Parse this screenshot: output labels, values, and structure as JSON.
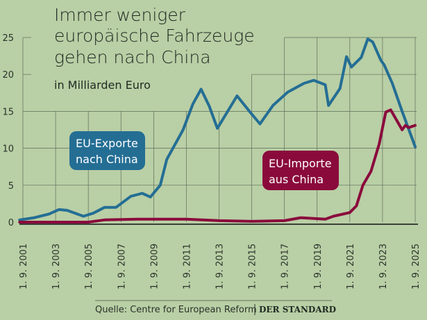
{
  "chart_data": {
    "type": "line",
    "title": [
      "Immer weniger",
      "europäische Fahrzeuge",
      "gehen nach China"
    ],
    "subtitle": "in Milliarden Euro",
    "xlabel": "",
    "ylabel": "",
    "ylim": [
      0,
      25
    ],
    "y_ticks": [
      0,
      5,
      10,
      15,
      20,
      25
    ],
    "x_range": [
      2001,
      2025
    ],
    "x_tick_labels": [
      "1. 9. 2001",
      "1. 9. 2003",
      "1. 9. 2005",
      "1. 9. 2007",
      "1. 9. 2009",
      "1. 9. 2011",
      "1. 9. 2013",
      "1. 9. 2015",
      "1. 9. 2017",
      "1. 9. 2019",
      "1. 9. 2021",
      "1. 9. 2023",
      "1. 9. 2025"
    ],
    "grid": true,
    "series": [
      {
        "name": "EU-Exporte nach China",
        "color": "#246e94",
        "points": [
          [
            2000.8,
            0.3
          ],
          [
            2001.7,
            0.6
          ],
          [
            2002.6,
            1.1
          ],
          [
            2003.2,
            1.7
          ],
          [
            2003.7,
            1.6
          ],
          [
            2004.7,
            0.8
          ],
          [
            2005.3,
            1.2
          ],
          [
            2006.0,
            2.0
          ],
          [
            2006.7,
            2.0
          ],
          [
            2007.6,
            3.5
          ],
          [
            2008.3,
            3.9
          ],
          [
            2008.8,
            3.4
          ],
          [
            2009.4,
            5.0
          ],
          [
            2009.8,
            8.5
          ],
          [
            2010.8,
            12.5
          ],
          [
            2011.4,
            16.0
          ],
          [
            2011.9,
            18.0
          ],
          [
            2012.4,
            15.7
          ],
          [
            2012.9,
            12.7
          ],
          [
            2014.1,
            17.1
          ],
          [
            2014.9,
            14.9
          ],
          [
            2015.5,
            13.3
          ],
          [
            2016.3,
            15.8
          ],
          [
            2017.2,
            17.6
          ],
          [
            2018.2,
            18.8
          ],
          [
            2018.8,
            19.2
          ],
          [
            2019.5,
            18.6
          ],
          [
            2019.7,
            15.8
          ],
          [
            2020.4,
            18.1
          ],
          [
            2020.8,
            22.4
          ],
          [
            2021.1,
            21.0
          ],
          [
            2021.7,
            22.3
          ],
          [
            2022.1,
            24.8
          ],
          [
            2022.4,
            24.4
          ],
          [
            2022.9,
            21.9
          ],
          [
            2023.1,
            21.3
          ],
          [
            2023.6,
            18.8
          ],
          [
            2024.2,
            15.0
          ],
          [
            2025.0,
            10.2
          ]
        ]
      },
      {
        "name": "EU-Importe aus China",
        "color": "#8a0a3c",
        "points": [
          [
            2000.8,
            0.0
          ],
          [
            2005.0,
            0.0
          ],
          [
            2006.0,
            0.3
          ],
          [
            2008.0,
            0.4
          ],
          [
            2011.0,
            0.4
          ],
          [
            2013.0,
            0.2
          ],
          [
            2015.0,
            0.1
          ],
          [
            2017.0,
            0.2
          ],
          [
            2018.0,
            0.6
          ],
          [
            2019.5,
            0.4
          ],
          [
            2020.0,
            0.8
          ],
          [
            2021.0,
            1.3
          ],
          [
            2021.4,
            2.2
          ],
          [
            2021.8,
            5.0
          ],
          [
            2022.3,
            6.9
          ],
          [
            2022.8,
            10.6
          ],
          [
            2023.2,
            14.9
          ],
          [
            2023.5,
            15.2
          ],
          [
            2024.2,
            12.5
          ],
          [
            2024.4,
            13.1
          ],
          [
            2024.6,
            12.8
          ],
          [
            2025.0,
            13.1
          ]
        ]
      }
    ]
  },
  "source": "Quelle: Centre for European Reform",
  "brand": "DER STANDARD"
}
